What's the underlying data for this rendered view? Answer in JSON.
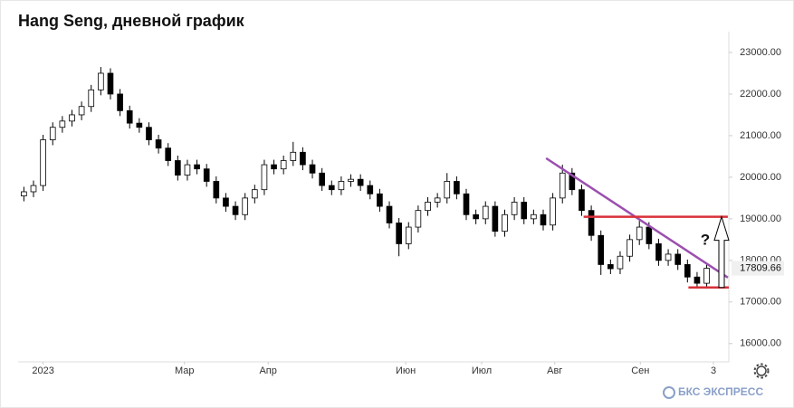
{
  "chart_data": {
    "type": "candlestick",
    "title": "Hang Seng, дневной график",
    "up_color": "#ffffff",
    "down_color": "#000000",
    "edge_color": "#000000",
    "open": [
      19550,
      19650,
      19800,
      20900,
      21200,
      21350,
      21500,
      21700,
      22100,
      22500,
      22000,
      21600,
      21300,
      21200,
      20900,
      20700,
      20400,
      20050,
      20300,
      20200,
      19900,
      19500,
      19300,
      19100,
      19500,
      19700,
      20300,
      20200,
      20400,
      20600,
      20300,
      20100,
      19800,
      19700,
      19900,
      19950,
      19800,
      19600,
      19300,
      18900,
      18400,
      18800,
      19200,
      19400,
      19500,
      19900,
      19600,
      19100,
      19000,
      19300,
      18700,
      19100,
      19400,
      19000,
      19100,
      18850,
      19500,
      20100,
      19700,
      19200,
      18600,
      17900,
      17800,
      18100,
      18500,
      18800,
      18400,
      18000,
      18150,
      17900,
      17600,
      17450
    ],
    "high": [
      19770,
      19920,
      21020,
      21320,
      21470,
      21620,
      21820,
      22220,
      22650,
      22620,
      22120,
      21720,
      21420,
      21320,
      21020,
      20820,
      20520,
      20420,
      20420,
      20320,
      20020,
      19620,
      19420,
      19620,
      19820,
      20420,
      20420,
      20520,
      20850,
      20720,
      20420,
      20220,
      19920,
      20020,
      20070,
      20070,
      19920,
      19720,
      19420,
      19020,
      18920,
      19320,
      19520,
      19620,
      20100,
      20020,
      19720,
      19220,
      19420,
      19420,
      19220,
      19520,
      19520,
      19220,
      19220,
      19620,
      20300,
      20220,
      19820,
      19320,
      18720,
      18020,
      18220,
      18620,
      18950,
      18920,
      18520,
      18270,
      18270,
      18020,
      17720,
      17930
    ],
    "low": [
      19420,
      19520,
      19670,
      20770,
      21070,
      21220,
      21370,
      21570,
      21970,
      21870,
      21470,
      21170,
      21070,
      20770,
      20570,
      20270,
      19920,
      19920,
      20070,
      19770,
      19370,
      19170,
      18970,
      18970,
      19370,
      19570,
      20070,
      20070,
      20270,
      20170,
      19970,
      19670,
      19570,
      19570,
      19770,
      19670,
      19470,
      19170,
      18770,
      18100,
      18270,
      18670,
      19070,
      19270,
      19370,
      19470,
      18970,
      18870,
      18870,
      18570,
      18570,
      18970,
      18870,
      18870,
      18720,
      18720,
      19370,
      19570,
      19070,
      18470,
      17650,
      17670,
      17670,
      17970,
      18370,
      18270,
      17870,
      17870,
      17770,
      17470,
      17320,
      17320
    ],
    "close": [
      19650,
      19800,
      20900,
      21200,
      21350,
      21500,
      21700,
      22100,
      22500,
      22000,
      21600,
      21300,
      21200,
      20900,
      20700,
      20400,
      20050,
      20300,
      20200,
      19900,
      19500,
      19300,
      19100,
      19500,
      19700,
      20300,
      20200,
      20400,
      20600,
      20300,
      20100,
      19800,
      19700,
      19900,
      19950,
      19800,
      19600,
      19300,
      18900,
      18400,
      18800,
      19200,
      19400,
      19500,
      19900,
      19600,
      19100,
      19000,
      19300,
      18700,
      19100,
      19400,
      19000,
      19100,
      18850,
      19500,
      20100,
      19700,
      19200,
      18600,
      17900,
      17800,
      18100,
      18500,
      18800,
      18400,
      18000,
      18150,
      17900,
      17600,
      17450,
      17810
    ],
    "xlim": [
      -0.6,
      73.3
    ],
    "xticks": [
      {
        "value": 2.0,
        "label": "2023"
      },
      {
        "value": 16.7,
        "label": "Мар"
      },
      {
        "value": 25.4,
        "label": "Апр"
      },
      {
        "value": 39.7,
        "label": "Июн"
      },
      {
        "value": 47.6,
        "label": "Июл"
      },
      {
        "value": 55.2,
        "label": "Авг"
      },
      {
        "value": 64.1,
        "label": "Сен"
      },
      {
        "value": 71.7,
        "label": "3"
      }
    ],
    "ylim": [
      15560,
      23500
    ],
    "yticks": [
      {
        "value": 16000,
        "label": "16000.00"
      },
      {
        "value": 17000,
        "label": "17000.00"
      },
      {
        "value": 18000,
        "label": "18000.00"
      },
      {
        "value": 19000,
        "label": "19000.00"
      },
      {
        "value": 20000,
        "label": "20000.00"
      },
      {
        "value": 21000,
        "label": "21000.00"
      },
      {
        "value": 22000,
        "label": "22000.00"
      },
      {
        "value": 23000,
        "label": "23000.00"
      }
    ],
    "last_price": {
      "value": 17809.66,
      "label": "17809.66"
    },
    "trendline": {
      "color": "#9b4fb0",
      "x": [
        54.3,
        73.2
      ],
      "y": [
        20457,
        17587
      ]
    },
    "levels": [
      {
        "color": "#d9303a",
        "x": [
          58.2,
          73.2
        ],
        "y": 19050
      },
      {
        "color": "#d9303a",
        "x": [
          69.1,
          73.3
        ],
        "y": 17350
      }
    ],
    "annotation": "?",
    "brand": "БКС ЭКСПРЕСС"
  }
}
